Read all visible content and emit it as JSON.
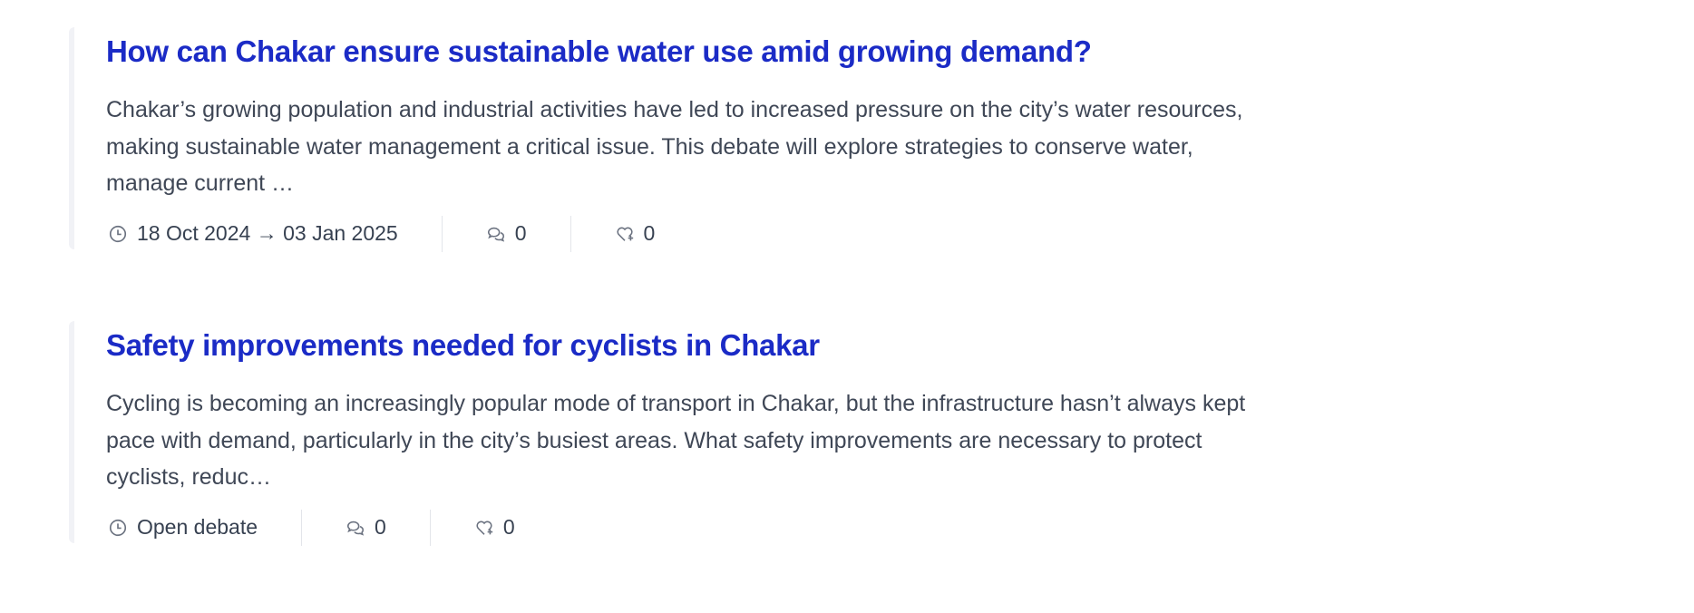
{
  "colors": {
    "title": "#1b2bc6",
    "text": "#3f4756",
    "icon": "#6b7280"
  },
  "debates": [
    {
      "title": "How can Chakar ensure sustainable water use amid growing demand?",
      "description_lines": [
        "Chakar’s growing population and industrial activities have led to increased pressure on the city’s water resources,",
        "making sustainable water management a critical issue. This debate will explore strategies to conserve water,",
        "manage current …"
      ],
      "status": {
        "icon": "clock-icon",
        "text": "18 Oct 2024 → 03 Jan 2025"
      },
      "comments": {
        "icon": "comments-icon",
        "count": "0"
      },
      "endorsements": {
        "icon": "heart-plus-icon",
        "count": "0"
      }
    },
    {
      "title": "Safety improvements needed for cyclists in Chakar",
      "description_lines": [
        "Cycling is becoming an increasingly popular mode of transport in Chakar, but the infrastructure hasn’t always kept",
        "pace with demand, particularly in the city’s busiest areas. What safety improvements are necessary to protect",
        "cyclists, reduc…"
      ],
      "status": {
        "icon": "clock-icon",
        "text": "Open debate"
      },
      "comments": {
        "icon": "comments-icon",
        "count": "0"
      },
      "endorsements": {
        "icon": "heart-plus-icon",
        "count": "0"
      }
    }
  ]
}
